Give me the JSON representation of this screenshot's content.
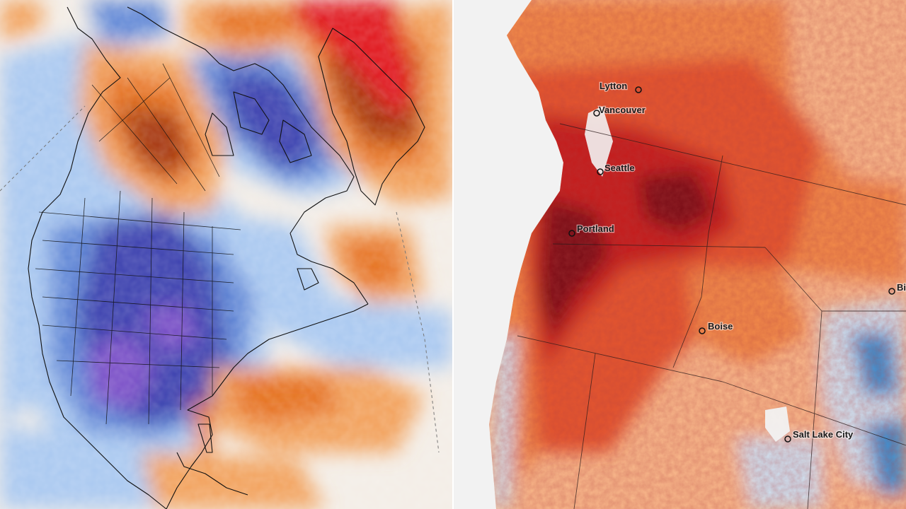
{
  "left_map": {
    "ocean_color": "#f3ede6",
    "anomaly_colors": {
      "extreme_cold": "#7a4fc7",
      "very_cold": "#3a3fae",
      "cold": "#5f86d6",
      "cool": "#a9c8f0",
      "neutral": "#f4f1ec",
      "warm": "#f2a15c",
      "hot": "#e56f1f",
      "very_hot": "#a5360f",
      "extreme_hot": "#e0171c"
    }
  },
  "right_map": {
    "background_color": "#f2f2f2",
    "heat_colors": {
      "extreme": "#7a0d16",
      "very_hot": "#c41b1e",
      "hot": "#e4542d",
      "warm": "#f28a4a",
      "mild": "#f9b98b",
      "cool": "#cfe3f3",
      "cold": "#3e8fd0"
    },
    "cities": [
      {
        "name": "Lytton"
      },
      {
        "name": "Vancouver"
      },
      {
        "name": "Seattle"
      },
      {
        "name": "Portland"
      },
      {
        "name": "Boise"
      },
      {
        "name": "Salt Lake City"
      },
      {
        "name": "Bi"
      }
    ]
  }
}
